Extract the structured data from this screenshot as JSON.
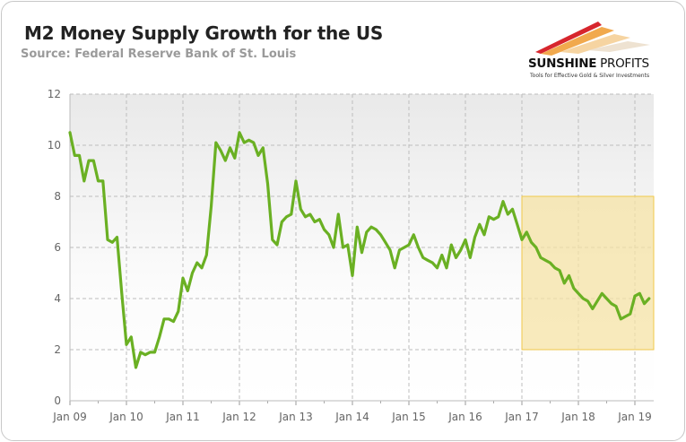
{
  "header": {
    "title": "M2 Money Supply Growth for the US",
    "subtitle": "Source: Federal Reserve Bank of St. Louis"
  },
  "logo": {
    "name_bold": "SUNSHINE",
    "name_rest": " PROFITS",
    "tagline": "Tools for Effective Gold & Silver Investments"
  },
  "chart_data": {
    "type": "line",
    "title": "M2 Money Supply Growth for the US",
    "xlabel": "",
    "ylabel": "",
    "ylim": [
      0,
      12
    ],
    "yticks": [
      0,
      2,
      4,
      6,
      8,
      10,
      12
    ],
    "xlim": [
      "2009-01",
      "2019-05"
    ],
    "xticks": [
      {
        "date": "2009-01",
        "label": "Jan 09"
      },
      {
        "date": "2010-01",
        "label": "Jan 10"
      },
      {
        "date": "2011-01",
        "label": "Jan 11"
      },
      {
        "date": "2012-01",
        "label": "Jan 12"
      },
      {
        "date": "2013-01",
        "label": "Jan 13"
      },
      {
        "date": "2014-01",
        "label": "Jan 14"
      },
      {
        "date": "2015-01",
        "label": "Jan 15"
      },
      {
        "date": "2016-01",
        "label": "Jan 16"
      },
      {
        "date": "2017-01",
        "label": "Jan 17"
      },
      {
        "date": "2018-01",
        "label": "Jan 18"
      },
      {
        "date": "2019-01",
        "label": "Jan 19"
      }
    ],
    "grid": true,
    "line_color": "#6ab023",
    "highlight": {
      "x": [
        "2017-01",
        "2019-05"
      ],
      "y": [
        2,
        8
      ],
      "color": "#f5e3a6",
      "border": "#f0c84a"
    },
    "series": [
      {
        "points": [
          [
            "2009-01",
            10.5
          ],
          [
            "2009-02",
            9.6
          ],
          [
            "2009-03",
            9.6
          ],
          [
            "2009-04",
            8.6
          ],
          [
            "2009-05",
            9.4
          ],
          [
            "2009-06",
            9.4
          ],
          [
            "2009-07",
            8.6
          ],
          [
            "2009-08",
            8.6
          ],
          [
            "2009-09",
            6.3
          ],
          [
            "2009-10",
            6.2
          ],
          [
            "2009-11",
            6.4
          ],
          [
            "2009-12",
            4.2
          ],
          [
            "2010-01",
            2.2
          ],
          [
            "2010-02",
            2.5
          ],
          [
            "2010-03",
            1.3
          ],
          [
            "2010-04",
            1.9
          ],
          [
            "2010-05",
            1.8
          ],
          [
            "2010-06",
            1.9
          ],
          [
            "2010-07",
            1.9
          ],
          [
            "2010-08",
            2.5
          ],
          [
            "2010-09",
            3.2
          ],
          [
            "2010-10",
            3.2
          ],
          [
            "2010-11",
            3.1
          ],
          [
            "2010-12",
            3.5
          ],
          [
            "2011-01",
            4.8
          ],
          [
            "2011-02",
            4.3
          ],
          [
            "2011-03",
            5.0
          ],
          [
            "2011-04",
            5.4
          ],
          [
            "2011-05",
            5.2
          ],
          [
            "2011-06",
            5.7
          ],
          [
            "2011-07",
            7.6
          ],
          [
            "2011-08",
            10.1
          ],
          [
            "2011-09",
            9.8
          ],
          [
            "2011-10",
            9.4
          ],
          [
            "2011-11",
            9.9
          ],
          [
            "2011-12",
            9.5
          ],
          [
            "2012-01",
            10.5
          ],
          [
            "2012-02",
            10.1
          ],
          [
            "2012-03",
            10.2
          ],
          [
            "2012-04",
            10.1
          ],
          [
            "2012-05",
            9.6
          ],
          [
            "2012-06",
            9.9
          ],
          [
            "2012-07",
            8.5
          ],
          [
            "2012-08",
            6.3
          ],
          [
            "2012-09",
            6.1
          ],
          [
            "2012-10",
            7.0
          ],
          [
            "2012-11",
            7.2
          ],
          [
            "2012-12",
            7.3
          ],
          [
            "2013-01",
            8.6
          ],
          [
            "2013-02",
            7.5
          ],
          [
            "2013-03",
            7.2
          ],
          [
            "2013-04",
            7.3
          ],
          [
            "2013-05",
            7.0
          ],
          [
            "2013-06",
            7.1
          ],
          [
            "2013-07",
            6.7
          ],
          [
            "2013-08",
            6.5
          ],
          [
            "2013-09",
            6.0
          ],
          [
            "2013-10",
            7.3
          ],
          [
            "2013-11",
            6.0
          ],
          [
            "2013-12",
            6.1
          ],
          [
            "2014-01",
            4.9
          ],
          [
            "2014-02",
            6.8
          ],
          [
            "2014-03",
            5.8
          ],
          [
            "2014-04",
            6.6
          ],
          [
            "2014-05",
            6.8
          ],
          [
            "2014-06",
            6.7
          ],
          [
            "2014-07",
            6.5
          ],
          [
            "2014-08",
            6.2
          ],
          [
            "2014-09",
            5.9
          ],
          [
            "2014-10",
            5.2
          ],
          [
            "2014-11",
            5.9
          ],
          [
            "2014-12",
            6.0
          ],
          [
            "2015-01",
            6.1
          ],
          [
            "2015-02",
            6.5
          ],
          [
            "2015-03",
            6.0
          ],
          [
            "2015-04",
            5.6
          ],
          [
            "2015-05",
            5.5
          ],
          [
            "2015-06",
            5.4
          ],
          [
            "2015-07",
            5.2
          ],
          [
            "2015-08",
            5.7
          ],
          [
            "2015-09",
            5.2
          ],
          [
            "2015-10",
            6.1
          ],
          [
            "2015-11",
            5.6
          ],
          [
            "2015-12",
            5.9
          ],
          [
            "2016-01",
            6.3
          ],
          [
            "2016-02",
            5.6
          ],
          [
            "2016-03",
            6.4
          ],
          [
            "2016-04",
            6.9
          ],
          [
            "2016-05",
            6.5
          ],
          [
            "2016-06",
            7.2
          ],
          [
            "2016-07",
            7.1
          ],
          [
            "2016-08",
            7.2
          ],
          [
            "2016-09",
            7.8
          ],
          [
            "2016-10",
            7.3
          ],
          [
            "2016-11",
            7.5
          ],
          [
            "2016-12",
            6.9
          ],
          [
            "2017-01",
            6.3
          ],
          [
            "2017-02",
            6.6
          ],
          [
            "2017-03",
            6.2
          ],
          [
            "2017-04",
            6.0
          ],
          [
            "2017-05",
            5.6
          ],
          [
            "2017-06",
            5.5
          ],
          [
            "2017-07",
            5.4
          ],
          [
            "2017-08",
            5.2
          ],
          [
            "2017-09",
            5.1
          ],
          [
            "2017-10",
            4.6
          ],
          [
            "2017-11",
            4.9
          ],
          [
            "2017-12",
            4.4
          ],
          [
            "2018-01",
            4.2
          ],
          [
            "2018-02",
            4.0
          ],
          [
            "2018-03",
            3.9
          ],
          [
            "2018-04",
            3.6
          ],
          [
            "2018-05",
            3.9
          ],
          [
            "2018-06",
            4.2
          ],
          [
            "2018-07",
            4.0
          ],
          [
            "2018-08",
            3.8
          ],
          [
            "2018-09",
            3.7
          ],
          [
            "2018-10",
            3.2
          ],
          [
            "2018-11",
            3.3
          ],
          [
            "2018-12",
            3.4
          ],
          [
            "2019-01",
            4.1
          ],
          [
            "2019-02",
            4.2
          ],
          [
            "2019-03",
            3.8
          ],
          [
            "2019-04",
            4.0
          ]
        ]
      }
    ]
  }
}
